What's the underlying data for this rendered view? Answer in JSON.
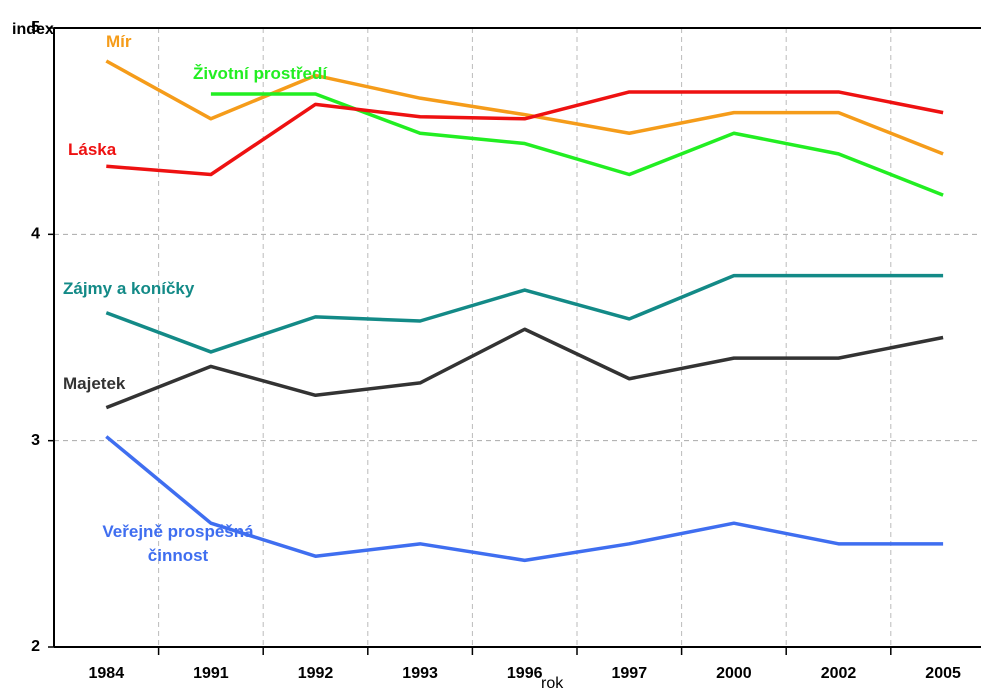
{
  "chart_data": {
    "type": "line",
    "y_label": "index",
    "x_label": "rok",
    "categories": [
      "1984",
      "1991",
      "1992",
      "1993",
      "1996",
      "1997",
      "2000",
      "2002",
      "2005"
    ],
    "series": [
      {
        "name": "Mír",
        "color": "#f59c1a",
        "values": [
          4.84,
          4.56,
          4.77,
          4.66,
          4.58,
          4.49,
          4.59,
          4.59,
          4.39
        ]
      },
      {
        "name": "Životní prostředí",
        "color": "#22ee22",
        "values": [
          null,
          4.68,
          4.68,
          4.49,
          4.44,
          4.29,
          4.49,
          4.39,
          4.19
        ]
      },
      {
        "name": "Láska",
        "color": "#ee1111",
        "values": [
          4.33,
          4.29,
          4.63,
          4.57,
          4.56,
          4.69,
          4.69,
          4.69,
          4.59
        ]
      },
      {
        "name": "Zájmy a koníčky",
        "color": "#138a87",
        "values": [
          3.62,
          3.43,
          3.6,
          3.58,
          3.73,
          3.59,
          3.8,
          3.8,
          3.8
        ]
      },
      {
        "name": "Majetek",
        "color": "#333333",
        "values": [
          3.16,
          3.36,
          3.22,
          3.28,
          3.54,
          3.3,
          3.4,
          3.4,
          3.5
        ]
      },
      {
        "name": "Veřejně prospěšná činnost",
        "color": "#3f6ef0",
        "values": [
          3.02,
          2.6,
          2.44,
          2.5,
          2.42,
          2.5,
          2.6,
          2.5,
          2.5
        ]
      }
    ],
    "ylim": [
      2,
      5
    ],
    "yticks": [
      2,
      3,
      4,
      5
    ],
    "grid": true
  }
}
